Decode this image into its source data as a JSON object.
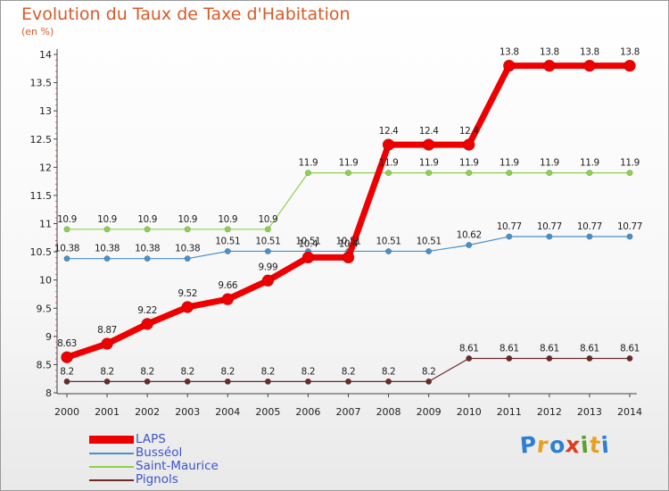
{
  "title": "Evolution du Taux de Taxe d'Habitation",
  "subtitle": "(en %)",
  "logo": {
    "letters": [
      "P",
      "r",
      "o",
      "x",
      "i",
      "t",
      "i"
    ],
    "colors": [
      "#2e7fd0",
      "#e8a020",
      "#2e7fd0",
      "#d84020",
      "#5aa02a",
      "#e8a020",
      "#2e7fd0"
    ]
  },
  "chart_data": {
    "type": "line",
    "categories": [
      "2000",
      "2001",
      "2002",
      "2003",
      "2004",
      "2005",
      "2006",
      "2007",
      "2008",
      "2009",
      "2010",
      "2011",
      "2012",
      "2013",
      "2014"
    ],
    "ylim": [
      8,
      14
    ],
    "yticks": [
      "8",
      "8.5",
      "9",
      "9.5",
      "10",
      "10.5",
      "11",
      "11.5",
      "12",
      "12.5",
      "13",
      "13.5",
      "14"
    ],
    "grid": false,
    "legend_position": "bottom-left",
    "series": [
      {
        "name": "Pignols",
        "color": "#6b2a2a",
        "width": 1.2,
        "marker": 3.2,
        "values": [
          8.2,
          8.2,
          8.2,
          8.2,
          8.2,
          8.2,
          8.2,
          8.2,
          8.2,
          8.2,
          8.61,
          8.61,
          8.61,
          8.61,
          8.61
        ],
        "labels": [
          "8.2",
          "8.2",
          "8.2",
          "8.2",
          "8.2",
          "8.2",
          "8.2",
          "8.2",
          "8.2",
          "8.2",
          "8.61",
          "8.61",
          "8.61",
          "8.61",
          "8.61"
        ]
      },
      {
        "name": "Busséol",
        "color": "#4a90c8",
        "width": 1.2,
        "marker": 3.2,
        "values": [
          10.38,
          10.38,
          10.38,
          10.38,
          10.51,
          10.51,
          10.51,
          10.51,
          10.51,
          10.51,
          10.62,
          10.77,
          10.77,
          10.77,
          10.77
        ],
        "labels": [
          "10.38",
          "10.38",
          "10.38",
          "10.38",
          "10.51",
          "10.51",
          "10.51",
          "10.51",
          "10.51",
          "10.51",
          "10.62",
          "10.77",
          "10.77",
          "10.77",
          "10.77"
        ]
      },
      {
        "name": "Saint-Maurice",
        "color": "#8fd050",
        "width": 1.2,
        "marker": 3.2,
        "values": [
          10.9,
          10.9,
          10.9,
          10.9,
          10.9,
          10.9,
          11.9,
          11.9,
          11.9,
          11.9,
          11.9,
          11.9,
          11.9,
          11.9,
          11.9
        ],
        "labels": [
          "10.9",
          "10.9",
          "10.9",
          "10.9",
          "10.9",
          "10.9",
          "11.9",
          "11.9",
          "11.9",
          "11.9",
          "11.9",
          "11.9",
          "11.9",
          "11.9",
          "11.9"
        ]
      },
      {
        "name": "LAPS",
        "color": "#ee0000",
        "width": 7,
        "marker": 6.5,
        "values": [
          8.63,
          8.87,
          9.22,
          9.52,
          9.66,
          9.99,
          10.4,
          10.4,
          12.4,
          12.4,
          12.4,
          13.8,
          13.8,
          13.8,
          13.8
        ],
        "labels": [
          "8.63",
          "8.87",
          "9.22",
          "9.52",
          "9.66",
          "9.99",
          "10.4",
          "10.4",
          "12.4",
          "12.4",
          "12.4",
          "13.8",
          "13.8",
          "13.8",
          "13.8"
        ]
      }
    ],
    "legend": [
      "LAPS",
      "Busséol",
      "Saint-Maurice",
      "Pignols"
    ]
  }
}
